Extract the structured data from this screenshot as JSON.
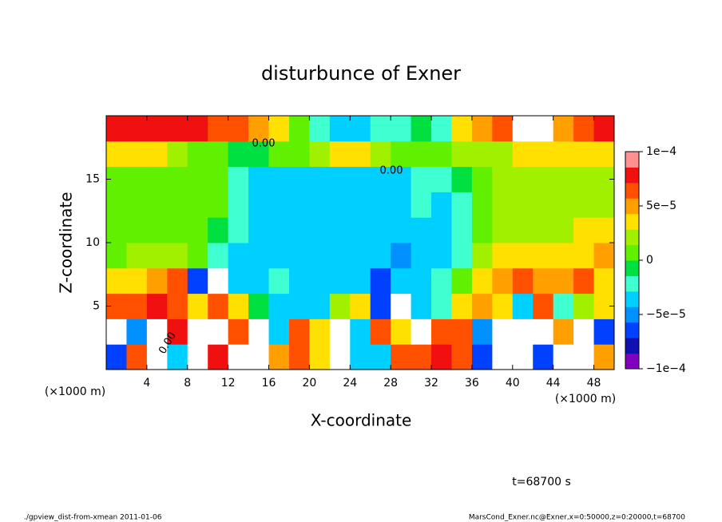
{
  "chart_data": {
    "type": "heatmap",
    "title": "disturbunce of Exner",
    "xlabel": "X-coordinate",
    "ylabel": "Z-coordinate",
    "xunit": "(×1000 m)",
    "yunit": "(×1000 m)",
    "xlim": [
      0,
      50
    ],
    "ylim": [
      0,
      20
    ],
    "xticks": [
      4,
      8,
      12,
      16,
      20,
      24,
      28,
      32,
      36,
      40,
      44,
      48
    ],
    "yticks": [
      5,
      10,
      15
    ],
    "x": [
      1,
      3,
      5,
      7,
      9,
      11,
      13,
      15,
      17,
      19,
      21,
      23,
      25,
      27,
      29,
      31,
      33,
      35,
      37,
      39,
      41,
      43,
      45,
      47,
      49
    ],
    "z": [
      1,
      3,
      5,
      7,
      9,
      11,
      13,
      15,
      17,
      19
    ],
    "values": [
      [
        -6e-05,
        7e-05,
        0.00011,
        -4e-05,
        0.00011,
        8e-05,
        0.00011,
        0.00011,
        5e-05,
        7e-05,
        4e-05,
        0.00011,
        -3e-05,
        -4e-05,
        7e-05,
        6e-05,
        8e-05,
        6e-05,
        -6e-05,
        0.00011,
        0.00011,
        -7e-05,
        0.00011,
        0.00011,
        5e-05
      ],
      [
        0.00011,
        -5e-05,
        0.00011,
        8e-05,
        0.00011,
        0.00011,
        6e-05,
        0.00011,
        -3e-05,
        7e-05,
        3e-05,
        0.00011,
        -4e-05,
        6e-05,
        4e-05,
        0.00011,
        6e-05,
        7e-05,
        -5e-05,
        0.00011,
        0.00011,
        0.00011,
        5e-05,
        0.00011,
        -6e-05
      ],
      [
        6e-05,
        7e-05,
        8e-05,
        6e-05,
        3e-05,
        7e-05,
        4e-05,
        -1e-05,
        -3e-05,
        -4e-05,
        -3e-05,
        2e-05,
        3e-05,
        -7e-05,
        0.00011,
        -4e-05,
        -2e-05,
        3e-05,
        5e-05,
        4e-05,
        -4e-05,
        6e-05,
        -2e-05,
        2e-05,
        3e-05
      ],
      [
        3e-05,
        4e-05,
        5e-05,
        6e-05,
        -6e-05,
        0.00011,
        -3e-05,
        -3e-05,
        -2e-05,
        -3e-05,
        -3e-05,
        -3e-05,
        -4e-05,
        -7e-05,
        -3e-05,
        -3e-05,
        -2e-05,
        0,
        3e-05,
        5e-05,
        6e-05,
        5e-05,
        5e-05,
        6e-05,
        4e-05
      ],
      [
        1e-05,
        2e-05,
        2e-05,
        2e-05,
        1e-05,
        -2e-05,
        -3e-05,
        -3e-05,
        -3e-05,
        -4e-05,
        -3e-05,
        -3e-05,
        -4e-05,
        -4e-05,
        -5e-05,
        -4e-05,
        -3e-05,
        -2e-05,
        2e-05,
        3e-05,
        3e-05,
        4e-05,
        3e-05,
        4e-05,
        5e-05
      ],
      [
        1e-05,
        1e-05,
        1e-05,
        1e-05,
        0,
        -1e-05,
        -2e-05,
        -3e-05,
        -3e-05,
        -3e-05,
        -3e-05,
        -3e-05,
        -3e-05,
        -3e-05,
        -3e-05,
        -3e-05,
        -3e-05,
        -2e-05,
        1e-05,
        2e-05,
        2e-05,
        2e-05,
        2e-05,
        3e-05,
        3e-05
      ],
      [
        1e-05,
        1e-05,
        1e-05,
        1e-05,
        1e-05,
        0,
        -2e-05,
        -3e-05,
        -3e-05,
        -3e-05,
        -3e-05,
        -3e-05,
        -3e-05,
        -3e-05,
        -3e-05,
        -2e-05,
        -3e-05,
        -2e-05,
        1e-05,
        2e-05,
        2e-05,
        2e-05,
        2e-05,
        2e-05,
        2e-05
      ],
      [
        1e-05,
        1e-05,
        1e-05,
        1e-05,
        0,
        0,
        -2e-05,
        -3e-05,
        -3e-05,
        -3e-05,
        -3e-05,
        -3e-05,
        -3e-05,
        -3e-05,
        -3e-05,
        -2e-05,
        -2e-05,
        -1e-05,
        1e-05,
        2e-05,
        2e-05,
        2e-05,
        2e-05,
        2e-05,
        2e-05
      ],
      [
        3e-05,
        3e-05,
        3e-05,
        2e-05,
        1e-05,
        0,
        -1e-05,
        -1e-05,
        0,
        1e-05,
        2e-05,
        4e-05,
        3e-05,
        2e-05,
        1e-05,
        1e-05,
        1e-05,
        2e-05,
        2e-05,
        2e-05,
        3e-05,
        3e-05,
        3e-05,
        3e-05,
        4e-05
      ],
      [
        8e-05,
        8e-05,
        8e-05,
        8e-05,
        8e-05,
        7e-05,
        6e-05,
        5e-05,
        3e-05,
        1e-05,
        -2e-05,
        -3e-05,
        -3e-05,
        -2e-05,
        -2e-05,
        -1e-05,
        -2e-05,
        3e-05,
        5e-05,
        6e-05,
        0.00011,
        0.00011,
        5e-05,
        7e-05,
        8e-05
      ]
    ],
    "clim": [
      -0.0001,
      0.0001
    ],
    "colors": [
      "#8000c0",
      "#1010b0",
      "#0040ff",
      "#0090ff",
      "#00d0ff",
      "#40ffd0",
      "#00e040",
      "#60f000",
      "#a0f000",
      "#ffe000",
      "#ffa000",
      "#ff5000",
      "#f01010",
      "#ff9090"
    ],
    "over_color": "#ffffff",
    "cticks": [
      {
        "value": -0.0001,
        "label": "−1e−4"
      },
      {
        "value": -5e-05,
        "label": "−5e−5"
      },
      0,
      {
        "value": 5e-05,
        "label": "5e−5"
      },
      {
        "value": 0.0001,
        "label": "1e−4"
      }
    ],
    "contour_labels": [
      "0.00",
      "0.00",
      "0.00"
    ],
    "time_label": "t=68700 s",
    "footer_left": "./gpview_dist-from-xmean  2011-01-06",
    "footer_right": "MarsCond_Exner.nc@Exner,x=0:50000,z=0:20000,t=68700"
  }
}
